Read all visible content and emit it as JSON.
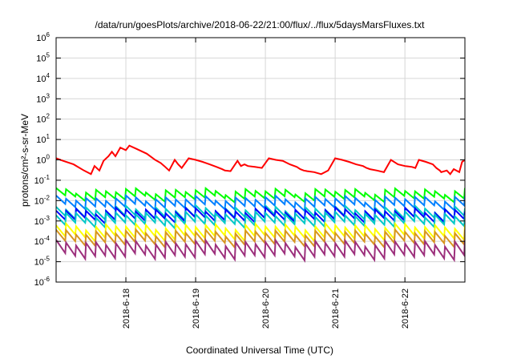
{
  "chart_data": {
    "type": "line",
    "title": "/data/run/goesPlots/archive/2018-06-22/21:00/flux/../flux/5daysMarsFluxes.txt",
    "xlabel": "Coordinated Universal Time (UTC)",
    "ylabel": "protons/cm²-s-sr-MeV",
    "y_scale": "log",
    "ylim_exponent": [
      -6,
      6
    ],
    "y_tick_base": "10",
    "y_tick_exponents": [
      "-6",
      "-5",
      "-4",
      "-3",
      "-2",
      "-1",
      "0",
      "1",
      "2",
      "3",
      "4",
      "5",
      "6"
    ],
    "x_range_days": [
      "2018-06-17 00:45",
      "2018-06-22 21:00"
    ],
    "x_ticks": [
      "2018-6-18",
      "2018-6-19",
      "2018-6-20",
      "2018-6-21",
      "2018-6-22"
    ],
    "grid": true,
    "legend": "none",
    "series": [
      {
        "color": "#ff0000",
        "x": [
          0,
          0.1,
          0.25,
          0.4,
          0.5,
          0.55,
          0.62,
          0.68,
          0.75,
          0.8,
          0.85,
          0.92,
          1.0,
          1.05,
          1.15,
          1.3,
          1.42,
          1.5,
          1.55,
          1.62,
          1.7,
          1.75,
          1.8,
          1.9,
          2.0,
          2.1,
          2.2,
          2.3,
          2.38,
          2.42,
          2.5,
          2.6,
          2.65,
          2.7,
          2.75,
          2.85,
          2.95,
          3.05,
          3.15,
          3.25,
          3.35,
          3.45,
          3.5,
          3.55,
          3.6,
          3.7,
          3.8,
          3.9,
          4.0,
          4.1,
          4.2,
          4.3,
          4.4,
          4.45,
          4.5,
          4.6,
          4.7,
          4.8,
          4.9,
          5.0,
          5.1,
          5.15,
          5.2,
          5.3,
          5.4,
          5.45,
          5.5,
          5.52,
          5.6,
          5.65,
          5.7,
          5.78,
          5.82,
          5.86
        ],
        "y": [
          1.2,
          0.9,
          0.6,
          0.3,
          0.2,
          0.5,
          0.3,
          0.9,
          1.5,
          2.5,
          1.5,
          4.0,
          3.0,
          5.0,
          3.5,
          2.0,
          1.0,
          0.7,
          0.5,
          0.3,
          1.0,
          0.6,
          0.4,
          1.2,
          1.0,
          0.8,
          0.6,
          0.45,
          0.35,
          0.3,
          0.28,
          0.9,
          0.5,
          0.6,
          0.5,
          0.45,
          0.4,
          1.2,
          1.0,
          0.9,
          0.6,
          0.45,
          0.35,
          0.3,
          0.28,
          0.25,
          0.2,
          0.3,
          1.2,
          1.0,
          0.8,
          0.6,
          0.5,
          0.4,
          0.35,
          0.3,
          0.25,
          1.0,
          0.6,
          0.5,
          0.45,
          0.4,
          1.0,
          0.8,
          0.6,
          0.4,
          0.3,
          0.25,
          0.3,
          0.2,
          0.35,
          0.25,
          0.8,
          1.0
        ]
      },
      {
        "color": "#00ff00",
        "base": 0.02,
        "amplitude": 2.3,
        "cycles": 41
      },
      {
        "color": "#0080ff",
        "base": 0.008,
        "amplitude": 2.6,
        "cycles": 41
      },
      {
        "color": "#00c8c8",
        "base": 0.0025,
        "amplitude": 2.8,
        "cycles": 41
      },
      {
        "color": "#0000ff",
        "base": 0.002,
        "amplitude": 2.8,
        "cycles": 41
      },
      {
        "color": "#00c8c8",
        "base": 0.0012,
        "amplitude": 3.0,
        "cycles": 41
      },
      {
        "color": "#ffff00",
        "base": 0.0003,
        "amplitude": 3.5,
        "cycles": 41
      },
      {
        "color": "#d89620",
        "base": 0.00015,
        "amplitude": 3.5,
        "cycles": 41
      },
      {
        "color": "#9c2f7c",
        "base": 4e-05,
        "amplitude": 4.5,
        "cycles": 41
      }
    ]
  }
}
